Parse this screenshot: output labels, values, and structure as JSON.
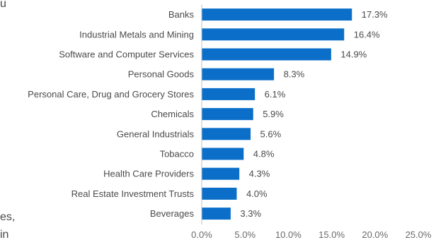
{
  "edge_fragments": [
    "u",
    "es,",
    "in"
  ],
  "chart_data": {
    "type": "bar",
    "orientation": "horizontal",
    "categories": [
      "Banks",
      "Industrial Metals and Mining",
      "Software and Computer Services",
      "Personal Goods",
      "Personal Care, Drug and Grocery Stores",
      "Chemicals",
      "General Industrials",
      "Tobacco",
      "Health Care Providers",
      "Real Estate Investment Trusts",
      "Beverages"
    ],
    "values": [
      17.3,
      16.4,
      14.9,
      8.3,
      6.1,
      5.9,
      5.6,
      4.8,
      4.3,
      4.0,
      3.3
    ],
    "value_labels": [
      "17.3%",
      "16.4%",
      "14.9%",
      "8.3%",
      "6.1%",
      "5.9%",
      "5.6%",
      "4.8%",
      "4.3%",
      "4.0%",
      "3.3%"
    ],
    "xlim": [
      0,
      25
    ],
    "xticks": [
      0,
      5,
      10,
      15,
      20,
      25
    ],
    "xtick_labels": [
      "0.0%",
      "5.0%",
      "10.0%",
      "15.0%",
      "20.0%",
      "25.0%"
    ],
    "bar_color": "#0b6fc9",
    "grid": false,
    "legend": "none"
  }
}
